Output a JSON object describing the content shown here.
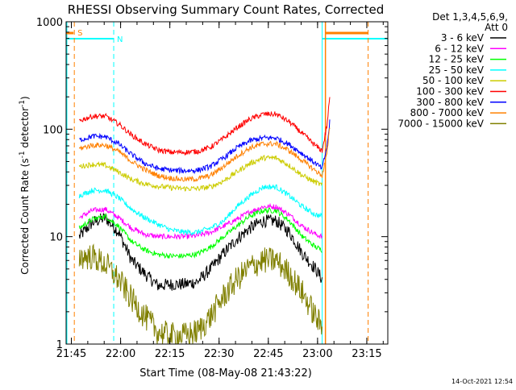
{
  "chart_data": {
    "type": "line",
    "title": "RHESSI Observing Summary Count Rates, Corrected",
    "xlabel": "Start Time (08-May-08 21:43:22)",
    "ylabel_main": "Corrected Count Rate (s",
    "ylabel_sup1": "-1",
    "ylabel_mid": " detector",
    "ylabel_sup2": "-1",
    "ylabel_end": ")",
    "timestamp": "14-Oct-2021 12:54",
    "yscale": "log",
    "ylim": [
      1,
      1000
    ],
    "xlim_minutes": [
      0,
      98
    ],
    "x_unit": "minutes since 21:43:22",
    "x_ticks": [
      {
        "t": 1.6,
        "label": "21:45"
      },
      {
        "t": 16.6,
        "label": "22:00"
      },
      {
        "t": 31.6,
        "label": "22:15"
      },
      {
        "t": 46.6,
        "label": "22:30"
      },
      {
        "t": 61.6,
        "label": "22:45"
      },
      {
        "t": 76.6,
        "label": "23:00"
      },
      {
        "t": 91.6,
        "label": "23:15"
      }
    ],
    "y_ticks": [
      {
        "v": 1,
        "label": "1"
      },
      {
        "v": 10,
        "label": "10"
      },
      {
        "v": 100,
        "label": "100"
      },
      {
        "v": 1000,
        "label": "1000"
      }
    ],
    "legend": {
      "header": [
        "Det 1,3,4,5,6,9,",
        "Att 0"
      ],
      "placement": "right"
    },
    "series": [
      {
        "name": "3 - 6 keV",
        "color": "#000000",
        "points": [
          [
            4,
            10
          ],
          [
            8,
            13.5
          ],
          [
            12,
            15
          ],
          [
            16,
            11
          ],
          [
            20,
            6
          ],
          [
            24,
            4.5
          ],
          [
            28,
            3.5
          ],
          [
            32,
            3.6
          ],
          [
            36,
            3.6
          ],
          [
            40,
            3.8
          ],
          [
            44,
            5
          ],
          [
            48,
            7
          ],
          [
            52,
            9.5
          ],
          [
            56,
            12
          ],
          [
            60,
            14
          ],
          [
            64,
            14
          ],
          [
            68,
            11
          ],
          [
            72,
            7
          ],
          [
            76,
            5
          ],
          [
            78,
            4
          ]
        ]
      },
      {
        "name": "6 - 12 keV",
        "color": "#ff00ff",
        "points": [
          [
            4,
            15
          ],
          [
            8,
            17.5
          ],
          [
            12,
            18
          ],
          [
            16,
            15
          ],
          [
            20,
            12
          ],
          [
            24,
            10.5
          ],
          [
            28,
            10
          ],
          [
            32,
            10
          ],
          [
            36,
            10
          ],
          [
            40,
            10.2
          ],
          [
            44,
            11
          ],
          [
            48,
            12.5
          ],
          [
            52,
            14.5
          ],
          [
            56,
            17
          ],
          [
            60,
            19
          ],
          [
            64,
            19
          ],
          [
            68,
            16
          ],
          [
            72,
            12.5
          ],
          [
            76,
            10.5
          ],
          [
            78,
            10
          ]
        ]
      },
      {
        "name": "12 - 25 keV",
        "color": "#00ff00",
        "points": [
          [
            4,
            12
          ],
          [
            8,
            14.5
          ],
          [
            12,
            15.5
          ],
          [
            16,
            12.5
          ],
          [
            20,
            9
          ],
          [
            24,
            7.5
          ],
          [
            28,
            6.8
          ],
          [
            32,
            6.6
          ],
          [
            36,
            6.6
          ],
          [
            40,
            6.9
          ],
          [
            44,
            8
          ],
          [
            48,
            10
          ],
          [
            52,
            12.5
          ],
          [
            56,
            15.5
          ],
          [
            60,
            17.5
          ],
          [
            64,
            17.5
          ],
          [
            68,
            14
          ],
          [
            72,
            10
          ],
          [
            76,
            8
          ],
          [
            78,
            7.5
          ]
        ]
      },
      {
        "name": "25 - 50 keV",
        "color": "#00ffff",
        "points": [
          [
            4,
            24
          ],
          [
            8,
            27
          ],
          [
            12,
            27
          ],
          [
            16,
            23
          ],
          [
            20,
            18
          ],
          [
            24,
            15
          ],
          [
            28,
            13
          ],
          [
            32,
            11.5
          ],
          [
            36,
            11
          ],
          [
            40,
            11
          ],
          [
            44,
            12
          ],
          [
            48,
            14
          ],
          [
            52,
            19
          ],
          [
            56,
            24
          ],
          [
            60,
            29
          ],
          [
            64,
            29
          ],
          [
            68,
            24
          ],
          [
            72,
            19
          ],
          [
            76,
            16
          ],
          [
            78,
            15.5
          ]
        ]
      },
      {
        "name": "50 - 100 keV",
        "color": "#cccc00",
        "points": [
          [
            4,
            45
          ],
          [
            8,
            47
          ],
          [
            12,
            46
          ],
          [
            16,
            40
          ],
          [
            20,
            34
          ],
          [
            24,
            31
          ],
          [
            28,
            29.5
          ],
          [
            32,
            28.5
          ],
          [
            36,
            28
          ],
          [
            40,
            28
          ],
          [
            44,
            29
          ],
          [
            48,
            33
          ],
          [
            52,
            40
          ],
          [
            56,
            48
          ],
          [
            60,
            54
          ],
          [
            64,
            54
          ],
          [
            68,
            46
          ],
          [
            72,
            37
          ],
          [
            76,
            32
          ],
          [
            78,
            30
          ]
        ]
      },
      {
        "name": "100 - 300 keV",
        "color": "#ff0000",
        "points": [
          [
            4,
            120
          ],
          [
            8,
            132
          ],
          [
            12,
            132
          ],
          [
            16,
            112
          ],
          [
            20,
            88
          ],
          [
            24,
            73
          ],
          [
            28,
            64
          ],
          [
            32,
            61
          ],
          [
            36,
            61
          ],
          [
            40,
            62
          ],
          [
            44,
            68
          ],
          [
            48,
            82
          ],
          [
            52,
            103
          ],
          [
            56,
            124
          ],
          [
            60,
            138
          ],
          [
            64,
            138
          ],
          [
            68,
            117
          ],
          [
            72,
            91
          ],
          [
            76,
            70
          ],
          [
            78,
            63
          ],
          [
            79.5,
            110
          ],
          [
            80.5,
            230
          ]
        ]
      },
      {
        "name": "300 - 800 keV",
        "color": "#0000ff",
        "points": [
          [
            4,
            79
          ],
          [
            8,
            86
          ],
          [
            12,
            85
          ],
          [
            16,
            73
          ],
          [
            20,
            58
          ],
          [
            24,
            48
          ],
          [
            28,
            43
          ],
          [
            32,
            41.5
          ],
          [
            36,
            41
          ],
          [
            40,
            41.5
          ],
          [
            44,
            45
          ],
          [
            48,
            54
          ],
          [
            52,
            67
          ],
          [
            56,
            78
          ],
          [
            60,
            83
          ],
          [
            64,
            83
          ],
          [
            68,
            72
          ],
          [
            72,
            59
          ],
          [
            76,
            48
          ],
          [
            78,
            43
          ],
          [
            79.5,
            70
          ],
          [
            80.5,
            130
          ]
        ]
      },
      {
        "name": "800 - 7000 keV",
        "color": "#ff8000",
        "points": [
          [
            4,
            66
          ],
          [
            8,
            71
          ],
          [
            12,
            71
          ],
          [
            16,
            62
          ],
          [
            20,
            50
          ],
          [
            24,
            42
          ],
          [
            28,
            37
          ],
          [
            32,
            35
          ],
          [
            36,
            34
          ],
          [
            40,
            34.5
          ],
          [
            44,
            37
          ],
          [
            48,
            45
          ],
          [
            52,
            56
          ],
          [
            56,
            67
          ],
          [
            60,
            73
          ],
          [
            64,
            73
          ],
          [
            68,
            63
          ],
          [
            72,
            51
          ],
          [
            76,
            41
          ],
          [
            78,
            37
          ],
          [
            79.5,
            60
          ],
          [
            80.5,
            120
          ]
        ]
      },
      {
        "name": "7000 - 15000 keV",
        "color": "#808000",
        "points": [
          [
            4,
            6.5
          ],
          [
            8,
            6.5
          ],
          [
            12,
            5.5
          ],
          [
            16,
            4
          ],
          [
            20,
            2.6
          ],
          [
            24,
            1.8
          ],
          [
            28,
            1.3
          ],
          [
            32,
            1.2
          ],
          [
            36,
            1.2
          ],
          [
            40,
            1.3
          ],
          [
            44,
            1.8
          ],
          [
            48,
            2.8
          ],
          [
            52,
            4
          ],
          [
            56,
            5.2
          ],
          [
            60,
            6
          ],
          [
            64,
            6
          ],
          [
            68,
            4.5
          ],
          [
            72,
            3
          ],
          [
            76,
            1.8
          ],
          [
            78,
            1.4
          ]
        ]
      }
    ],
    "markers": {
      "saa": {
        "label": "S",
        "color": "#ff8000",
        "start": 2.5,
        "end": 79,
        "bar_end": 92
      },
      "night": {
        "label": "N",
        "color": "#00ffff",
        "start": 14.5,
        "end": 78
      }
    }
  }
}
